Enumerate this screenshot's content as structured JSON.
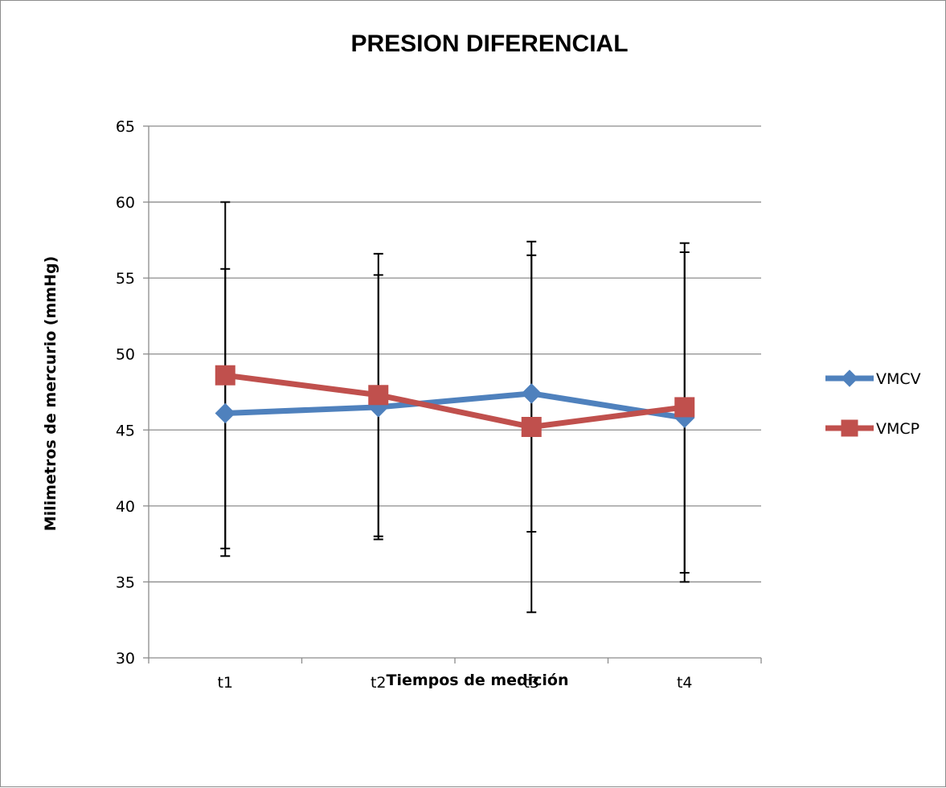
{
  "chart_data": {
    "type": "line",
    "title": "PRESION DIFERENCIAL",
    "xlabel": "Tiempos de medición",
    "ylabel": "Milimetros de mercurio (mmHg)",
    "categories": [
      "t1",
      "t2",
      "t3",
      "t4"
    ],
    "ylim": [
      30,
      65
    ],
    "yticks": [
      "30",
      "35",
      "40",
      "45",
      "50",
      "55",
      "60",
      "65"
    ],
    "grid": true,
    "legend_position": "right",
    "series": [
      {
        "name": "VMCV",
        "color": "#4f81bd",
        "marker": "diamond",
        "values": [
          46.1,
          46.5,
          47.4,
          45.8
        ],
        "error_low": [
          37.2,
          38.0,
          38.3,
          35.6
        ],
        "error_high": [
          55.6,
          55.2,
          56.5,
          56.7
        ]
      },
      {
        "name": "VMCP",
        "color": "#c0504d",
        "marker": "square",
        "values": [
          48.6,
          47.3,
          45.2,
          46.5
        ],
        "error_low": [
          36.7,
          37.8,
          33.0,
          35.0
        ],
        "error_high": [
          60.0,
          56.6,
          57.4,
          57.3
        ]
      }
    ]
  }
}
